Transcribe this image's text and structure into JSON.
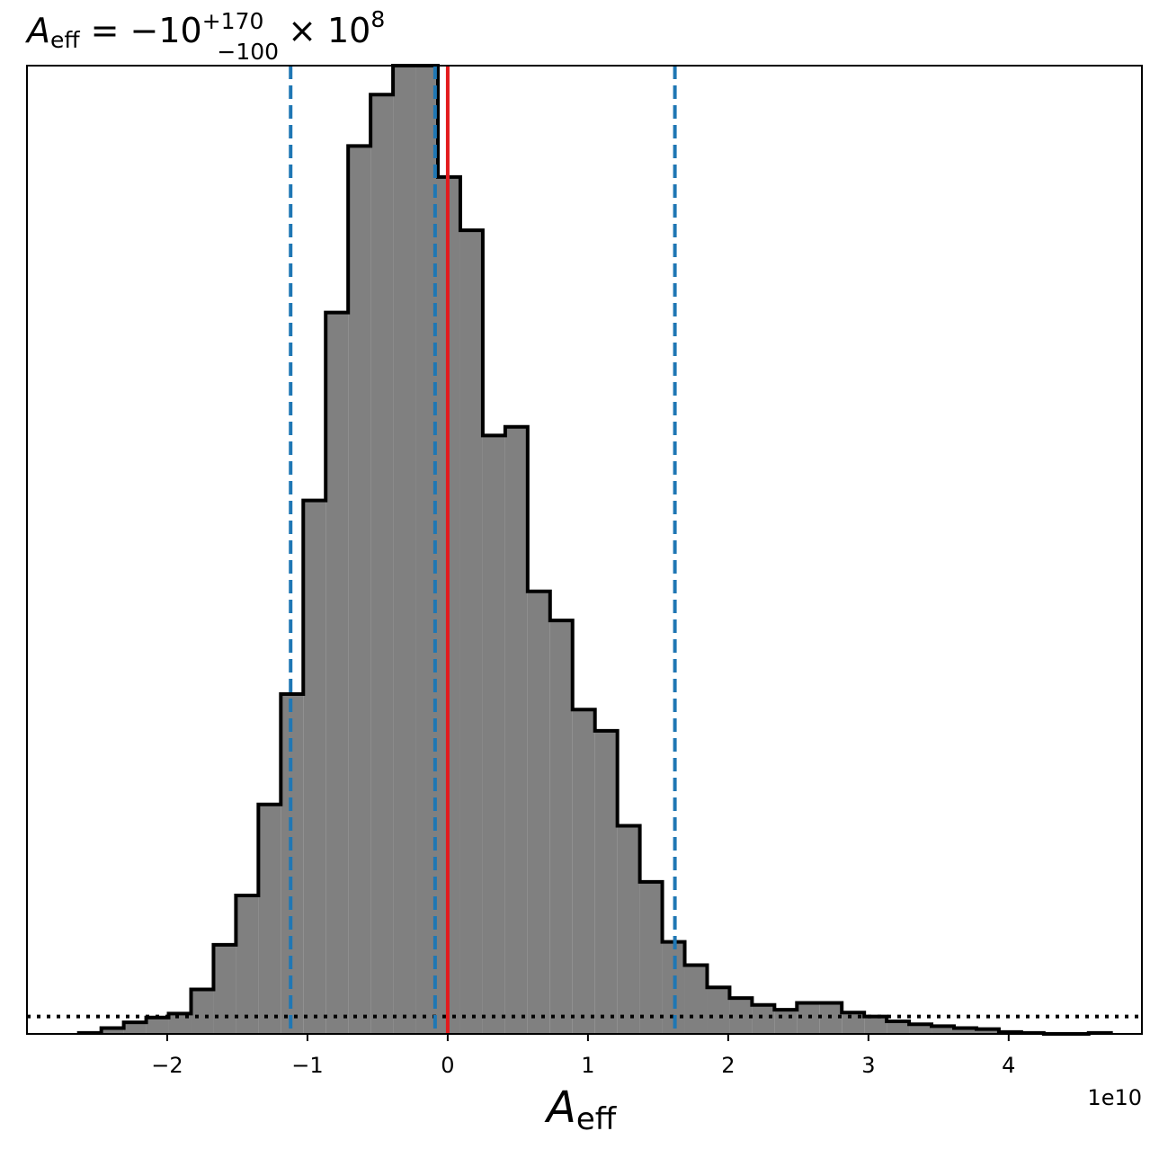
{
  "title": {
    "symbol": "A",
    "symbol_sub": "eff",
    "equals": "= −10",
    "sup": "+170",
    "sub": "−100",
    "times": "× 10",
    "exp": "8"
  },
  "axis": {
    "xlabel_symbol": "A",
    "xlabel_sub": "eff",
    "offset_label": "1e10"
  },
  "chart_data": {
    "type": "histogram",
    "xlim": [
      -3.0,
      4.95
    ],
    "ylim": [
      0,
      1.0
    ],
    "x_scale_factor": "1e10",
    "xticks": [
      -2,
      -1,
      0,
      1,
      2,
      3,
      4
    ],
    "xtick_labels": [
      "−2",
      "−1",
      "0",
      "1",
      "2",
      "3",
      "4"
    ],
    "yticks_visible": false,
    "grid": false,
    "bin_edges": [
      -2.63,
      -2.47,
      -2.31,
      -2.15,
      -1.99,
      -1.83,
      -1.67,
      -1.51,
      -1.35,
      -1.19,
      -1.03,
      -0.87,
      -0.71,
      -0.55,
      -0.39,
      -0.23,
      -0.07,
      0.09,
      0.25,
      0.41,
      0.57,
      0.73,
      0.89,
      1.05,
      1.21,
      1.37,
      1.53,
      1.69,
      1.85,
      2.01,
      2.17,
      2.33,
      2.49,
      2.65,
      2.81,
      2.97,
      3.13,
      3.29,
      3.45,
      3.61,
      3.77,
      3.93,
      4.09,
      4.25,
      4.41,
      4.57,
      4.73
    ],
    "counts": [
      0.001,
      0.006,
      0.012,
      0.017,
      0.021,
      0.046,
      0.092,
      0.143,
      0.237,
      0.351,
      0.551,
      0.745,
      0.917,
      0.97,
      1.0,
      1.0,
      0.885,
      0.83,
      0.618,
      0.627,
      0.457,
      0.427,
      0.335,
      0.313,
      0.215,
      0.157,
      0.095,
      0.071,
      0.048,
      0.037,
      0.03,
      0.025,
      0.032,
      0.032,
      0.022,
      0.018,
      0.013,
      0.01,
      0.008,
      0.006,
      0.005,
      0.002,
      0.001,
      0.0,
      0.0,
      0.001
    ],
    "fill_color": "#808080",
    "edge_color": "#000000",
    "truth_line": {
      "x": 0.0,
      "color": "#e31a1c",
      "style": "solid"
    },
    "quantile_lines": {
      "x": [
        -1.12,
        -0.09,
        1.62
      ],
      "color": "#1f77b4",
      "style": "dashed"
    },
    "prior_line": {
      "y": 0.018,
      "color": "#000000",
      "style": "dotted"
    }
  }
}
